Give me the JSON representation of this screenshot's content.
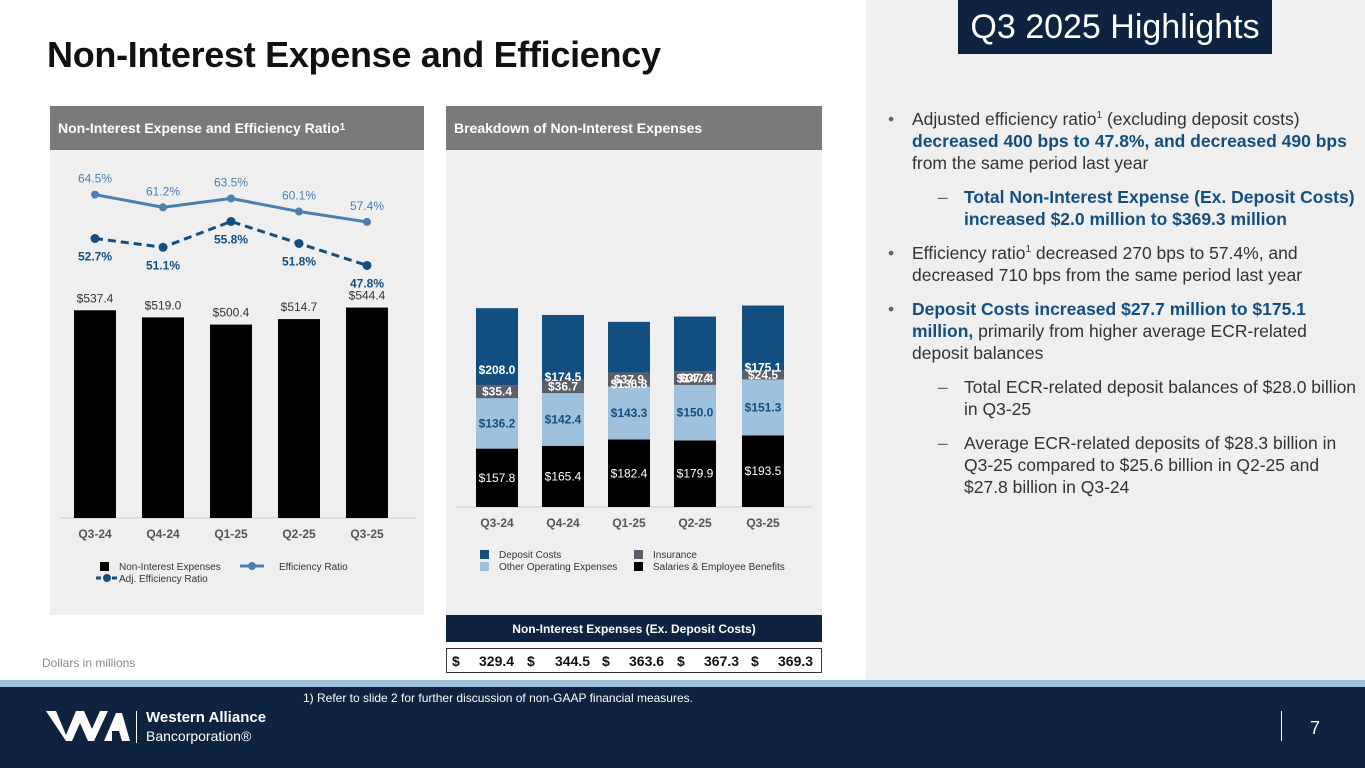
{
  "title": "Non-Interest Expense and Efficiency",
  "badge": "Q3 2025 Highlights",
  "left_panel": {
    "header": "Non-Interest Expense and Efficiency Ratio",
    "header_sup": "1"
  },
  "mid_panel": {
    "header": "Breakdown of Non-Interest Expenses"
  },
  "units_note": "Dollars in millions",
  "footnote": "1)    Refer to slide 2 for further discussion of non-GAAP financial measures.",
  "page_number": "7",
  "logo": {
    "name_line1": "Western Alliance",
    "name_line2": "Bancorporation®"
  },
  "table": {
    "header": "Non-Interest Expenses (Ex. Deposit Costs)",
    "currency": "$",
    "values": [
      "329.4",
      "344.5",
      "363.6",
      "367.3",
      "369.3"
    ]
  },
  "bullets": {
    "b1_a": "Adjusted efficiency ratio",
    "b1_sup": "1",
    "b1_b": " (excluding deposit costs) ",
    "b1_em": "decreased 400 bps to 47.8%, and decreased 490 bps",
    "b1_c": " from the same period last year",
    "s1_em": "Total Non-Interest Expense (Ex. Deposit Costs) increased $2.0 million to $369.3 million",
    "b2_a": "Efficiency ratio",
    "b2_sup": "1",
    "b2_b": " decreased 270 bps to 57.4%, and decreased 710 bps from the same period last year",
    "b3_em": "Deposit Costs increased $27.7 million to $175.1 million,",
    "b3_b": " primarily from higher average ECR-related deposit balances",
    "s2": "Total ECR-related deposit balances of $28.0 billion in Q3-25",
    "s3": "Average ECR-related deposits of $28.3 billion in Q3-25 compared to $25.6 billion in Q2-25 and $27.8 billion in Q3-24"
  },
  "colors": {
    "navy": "#0d2340",
    "deposit_costs": "#134e80",
    "insurance": "#5a5e69",
    "other_operating": "#9ec2dd",
    "salaries": "#000000",
    "efficiency_line": "#4a7fb0",
    "adj_line": "#134e80"
  },
  "chart_data": [
    {
      "type": "bar",
      "title": "Non-Interest Expense and Efficiency Ratio",
      "categories": [
        "Q3-24",
        "Q4-24",
        "Q1-25",
        "Q2-25",
        "Q3-25"
      ],
      "series": [
        {
          "name": "Non-Interest Expenses",
          "values": [
            537.4,
            519.0,
            500.4,
            514.7,
            544.4
          ],
          "labels": [
            "$537.4",
            "$519.0",
            "$500.4",
            "$514.7",
            "$544.4"
          ]
        },
        {
          "name": "Efficiency Ratio",
          "type": "line",
          "values": [
            64.5,
            61.2,
            63.5,
            60.1,
            57.4
          ],
          "labels": [
            "64.5%",
            "61.2%",
            "63.5%",
            "60.1%",
            "57.4%"
          ]
        },
        {
          "name": "Adj. Efficiency Ratio",
          "type": "line",
          "style": "dashed",
          "values": [
            52.7,
            51.1,
            55.8,
            51.8,
            47.8
          ],
          "labels": [
            "52.7%",
            "51.1%",
            "55.8%",
            "51.8%",
            "47.8%"
          ]
        }
      ],
      "legend": [
        "Non-Interest Expenses",
        "Efficiency Ratio",
        "Adj. Efficiency Ratio"
      ]
    },
    {
      "type": "bar",
      "stacked": true,
      "title": "Breakdown of Non-Interest Expenses",
      "categories": [
        "Q3-24",
        "Q4-24",
        "Q1-25",
        "Q2-25",
        "Q3-25"
      ],
      "series": [
        {
          "name": "Salaries & Employee Benefits",
          "values": [
            157.8,
            165.4,
            182.4,
            179.9,
            193.5
          ],
          "labels": [
            "$157.8",
            "$165.4",
            "$182.4",
            "$179.9",
            "$193.5"
          ]
        },
        {
          "name": "Other Operating Expenses",
          "values": [
            136.2,
            142.4,
            143.3,
            150.0,
            151.3
          ],
          "labels": [
            "$136.2",
            "$142.4",
            "$143.3",
            "$150.0",
            "$151.3"
          ]
        },
        {
          "name": "Insurance",
          "values": [
            35.4,
            36.7,
            37.9,
            37.4,
            24.5
          ],
          "labels": [
            "$35.4",
            "$36.7",
            "$37.9",
            "$37.4",
            "$24.5"
          ]
        },
        {
          "name": "Deposit Costs",
          "values": [
            208.0,
            174.5,
            136.8,
            147.4,
            175.1
          ],
          "labels": [
            "$208.0",
            "$174.5",
            "$136.8",
            "$147.4",
            "$175.1"
          ]
        }
      ],
      "legend": [
        "Deposit Costs",
        "Insurance",
        "Other Operating Expenses",
        "Salaries & Employee Benefits"
      ]
    }
  ]
}
